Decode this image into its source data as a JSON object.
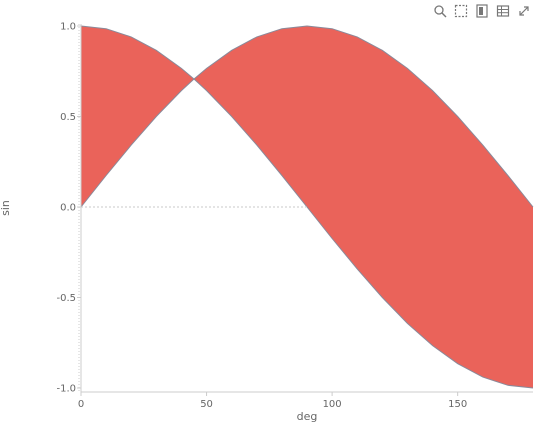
{
  "toolbar": {
    "icons": [
      "zoom-icon",
      "select-icon",
      "save-as-image-icon",
      "data-view-icon",
      "fullscreen-icon"
    ]
  },
  "colors": {
    "sin_fill": "#6A9FD4",
    "cos_fill": "#EA635A",
    "stroke": "#8a8a9a",
    "axis": "#cccccc",
    "zero_line": "#c8c8c8"
  },
  "chart_data": {
    "type": "area",
    "x": [
      0,
      10,
      20,
      30,
      40,
      45,
      50,
      60,
      70,
      80,
      90,
      100,
      110,
      120,
      130,
      140,
      150,
      160,
      170,
      180
    ],
    "series": [
      {
        "name": "",
        "values": [
          0.0,
          0.174,
          0.342,
          0.5,
          0.643,
          0.707,
          0.766,
          0.866,
          0.94,
          0.985,
          1.0,
          0.985,
          0.94,
          0.866,
          0.766,
          0.643,
          0.5,
          0.342,
          0.174,
          0.0
        ]
      },
      {
        "name": "",
        "values": [
          1.0,
          0.985,
          0.94,
          0.866,
          0.766,
          0.707,
          0.643,
          0.5,
          0.342,
          0.174,
          0.0,
          -0.174,
          -0.342,
          -0.5,
          -0.643,
          -0.766,
          -0.866,
          -0.94,
          -0.985,
          -1.0
        ]
      }
    ],
    "xlabel": "deg",
    "ylabel": "sin",
    "xlim": [
      0,
      180
    ],
    "ylim": [
      -1.0,
      1.0
    ],
    "x_ticks": [
      "0",
      "50",
      "100",
      "150"
    ],
    "y_ticks": [
      "1.0",
      "0.5",
      "0.0",
      "-0.5",
      "-1.0"
    ],
    "grid": false,
    "legend": "none"
  }
}
